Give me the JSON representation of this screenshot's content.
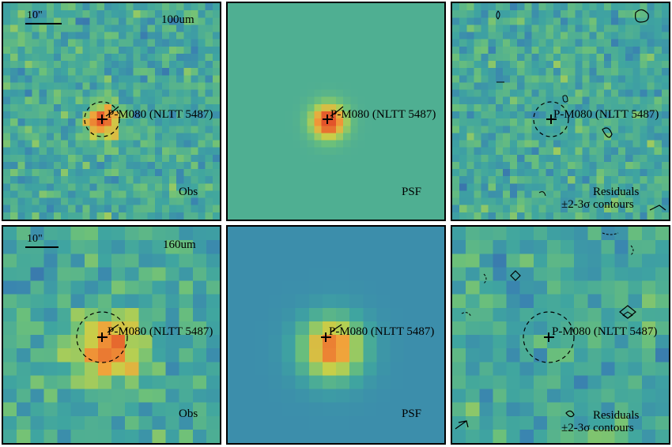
{
  "rows": [
    {
      "band": "100um",
      "scale_bar": "10\"",
      "source_label": "P-M080 (NLTT 5487)",
      "panels": [
        {
          "kind": "obs",
          "label": "Obs"
        },
        {
          "kind": "psf",
          "label": "PSF"
        },
        {
          "kind": "resid",
          "label": "Residuals",
          "label2": "±2-3σ contours"
        }
      ]
    },
    {
      "band": "160um",
      "scale_bar": "10\"",
      "source_label": "P-M080 (NLTT 5487)",
      "panels": [
        {
          "kind": "obs",
          "label": "Obs"
        },
        {
          "kind": "psf",
          "label": "PSF"
        },
        {
          "kind": "resid",
          "label": "Residuals",
          "label2": "±2-3σ contours"
        }
      ]
    }
  ],
  "colors": {
    "colormap": [
      "#3a1f6e",
      "#3b4ea0",
      "#3a84b0",
      "#3fa5a0",
      "#6cc07a",
      "#c4d24a",
      "#f2a13a",
      "#e2542a"
    ]
  }
}
